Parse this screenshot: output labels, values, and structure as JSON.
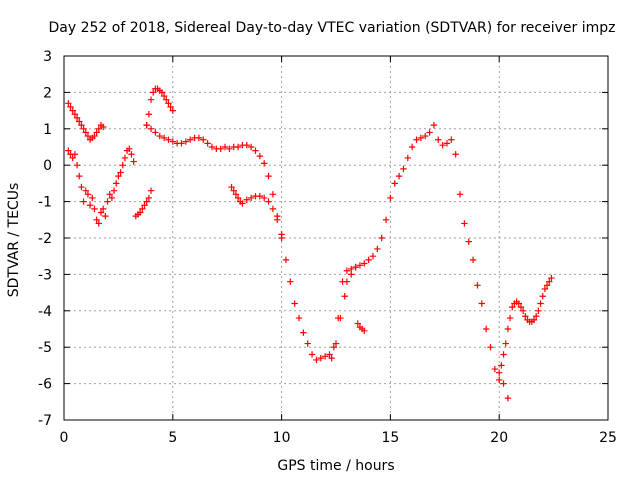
{
  "chart_data": {
    "type": "scatter",
    "title": "Day 252 of 2018, Sidereal Day-to-day VTEC variation (SDTVAR) for receiver impz",
    "xlabel": "GPS time / hours",
    "ylabel": "SDTVAR / TECUs",
    "xlim": [
      0,
      25
    ],
    "ylim": [
      -7,
      3
    ],
    "xticks": [
      0,
      5,
      10,
      15,
      20,
      25
    ],
    "yticks": [
      -7,
      -6,
      -5,
      -4,
      -3,
      -2,
      -1,
      0,
      1,
      2,
      3
    ],
    "grid": true,
    "marker": "plus",
    "color": "#ff0000",
    "series": [
      {
        "x": [
          0.2,
          0.3,
          0.4,
          0.5,
          0.6,
          0.7,
          0.8,
          0.9,
          1.0,
          1.1,
          1.2,
          1.3,
          1.4,
          1.5,
          1.6,
          1.7,
          1.8
        ],
        "y": [
          1.7,
          1.6,
          1.5,
          1.4,
          1.3,
          1.2,
          1.1,
          1.0,
          0.9,
          0.8,
          0.7,
          0.75,
          0.8,
          0.9,
          1.0,
          1.1,
          1.05
        ]
      },
      {
        "x": [
          0.2,
          0.3,
          0.4,
          0.5,
          0.6,
          0.7,
          0.8,
          0.9,
          1.0,
          1.1,
          1.2,
          1.3,
          1.4,
          1.5,
          1.6,
          1.7,
          1.8,
          1.9,
          2.0,
          2.1,
          2.2,
          2.3,
          2.4,
          2.5,
          2.6,
          2.7,
          2.8,
          2.9,
          3.0,
          3.1,
          3.2
        ],
        "y": [
          0.4,
          0.3,
          0.2,
          0.3,
          0.0,
          -0.3,
          -0.6,
          -1.0,
          -0.7,
          -0.8,
          -1.1,
          -0.9,
          -1.2,
          -1.5,
          -1.6,
          -1.3,
          -1.2,
          -1.4,
          -1.0,
          -0.8,
          -0.9,
          -0.7,
          -0.5,
          -0.3,
          -0.2,
          0.0,
          0.2,
          0.4,
          0.45,
          0.3,
          0.1
        ]
      },
      {
        "x": [
          3.3,
          3.4,
          3.5,
          3.6,
          3.7,
          3.8,
          3.9,
          4.0
        ],
        "y": [
          -1.4,
          -1.35,
          -1.3,
          -1.2,
          -1.1,
          -1.0,
          -0.9,
          -0.7
        ]
      },
      {
        "x": [
          3.8,
          3.9,
          4.0,
          4.1,
          4.2,
          4.3,
          4.4,
          4.5,
          4.6,
          4.7,
          4.8,
          4.9,
          5.0
        ],
        "y": [
          1.1,
          1.4,
          1.8,
          2.0,
          2.1,
          2.1,
          2.05,
          2.0,
          1.9,
          1.8,
          1.7,
          1.6,
          1.5
        ]
      },
      {
        "x": [
          3.8,
          4.0,
          4.2,
          4.4,
          4.6,
          4.8,
          5.0,
          5.2,
          5.4,
          5.6,
          5.8,
          6.0,
          6.2,
          6.4,
          6.6,
          6.8,
          7.0,
          7.2,
          7.4,
          7.6,
          7.8,
          8.0,
          8.2,
          8.4,
          8.6,
          8.8,
          9.0,
          9.2,
          9.4,
          9.6,
          9.8,
          10.0,
          10.2,
          10.4,
          10.6,
          10.8,
          11.0,
          11.2,
          11.4,
          11.6,
          11.8,
          12.0,
          12.2,
          12.4,
          12.6,
          12.8,
          13.0,
          13.2,
          13.4,
          13.6,
          13.8,
          14.0,
          14.2,
          14.4,
          14.6,
          14.8,
          15.0,
          15.2,
          15.4,
          15.6,
          15.8,
          16.0,
          16.2,
          16.4,
          16.6,
          16.8,
          17.0,
          17.2,
          17.4,
          17.6,
          17.8,
          18.0,
          18.2,
          18.4,
          18.6,
          18.8,
          19.0,
          19.2,
          19.4,
          19.6,
          19.8,
          20.0,
          20.2,
          20.4
        ],
        "y": [
          1.1,
          1.0,
          0.9,
          0.8,
          0.75,
          0.7,
          0.65,
          0.6,
          0.6,
          0.65,
          0.7,
          0.75,
          0.75,
          0.7,
          0.6,
          0.5,
          0.45,
          0.45,
          0.5,
          0.45,
          0.5,
          0.5,
          0.55,
          0.55,
          0.5,
          0.4,
          0.25,
          0.05,
          -0.3,
          -0.8,
          -1.4,
          -2.0,
          -2.6,
          -3.2,
          -3.8,
          -4.2,
          -4.6,
          -4.9,
          -5.2,
          -5.35,
          -5.3,
          -5.25,
          -5.2,
          -5.0,
          -4.2,
          -3.2,
          -2.9,
          -2.85,
          -2.8,
          -2.75,
          -2.7,
          -2.6,
          -2.5,
          -2.3,
          -2.0,
          -1.5,
          -0.9,
          -0.5,
          -0.3,
          -0.1,
          0.2,
          0.5,
          0.7,
          0.75,
          0.8,
          0.9,
          1.1,
          0.7,
          0.55,
          0.6,
          0.7,
          0.3,
          -0.8,
          -1.6,
          -2.1,
          -2.6,
          -3.3,
          -3.8,
          -4.5,
          -5.0,
          -5.6,
          -5.9,
          -6.0,
          -6.4
        ]
      },
      {
        "x": [
          7.7,
          7.8,
          7.9,
          8.0,
          8.1,
          8.2,
          8.4,
          8.6,
          8.8,
          9.0,
          9.2,
          9.4,
          9.6,
          9.8,
          10.0
        ],
        "y": [
          -0.6,
          -0.7,
          -0.8,
          -0.9,
          -1.0,
          -1.05,
          -0.95,
          -0.9,
          -0.85,
          -0.85,
          -0.9,
          -1.0,
          -1.2,
          -1.5,
          -1.9
        ]
      },
      {
        "x": [
          12.3,
          12.5,
          12.7,
          12.9,
          13.0,
          13.2,
          13.4
        ],
        "y": [
          -5.3,
          -4.9,
          -4.2,
          -3.6,
          -3.2,
          -3.0,
          -2.8
        ]
      },
      {
        "x": [
          13.5,
          13.6,
          13.7,
          13.8
        ],
        "y": [
          -4.35,
          -4.45,
          -4.5,
          -4.55
        ]
      },
      {
        "x": [
          20.0,
          20.1,
          20.2,
          20.3,
          20.4,
          20.5,
          20.6,
          20.7,
          20.8,
          20.9,
          21.0,
          21.1,
          21.2,
          21.3,
          21.4,
          21.5,
          21.6,
          21.7,
          21.8,
          21.9,
          22.0,
          22.1,
          22.2,
          22.3,
          22.4
        ],
        "y": [
          -5.7,
          -5.5,
          -5.2,
          -4.9,
          -4.5,
          -4.2,
          -3.9,
          -3.8,
          -3.75,
          -3.8,
          -3.9,
          -4.0,
          -4.15,
          -4.25,
          -4.3,
          -4.3,
          -4.25,
          -4.15,
          -4.0,
          -3.8,
          -3.6,
          -3.4,
          -3.3,
          -3.2,
          -3.1
        ]
      }
    ]
  }
}
